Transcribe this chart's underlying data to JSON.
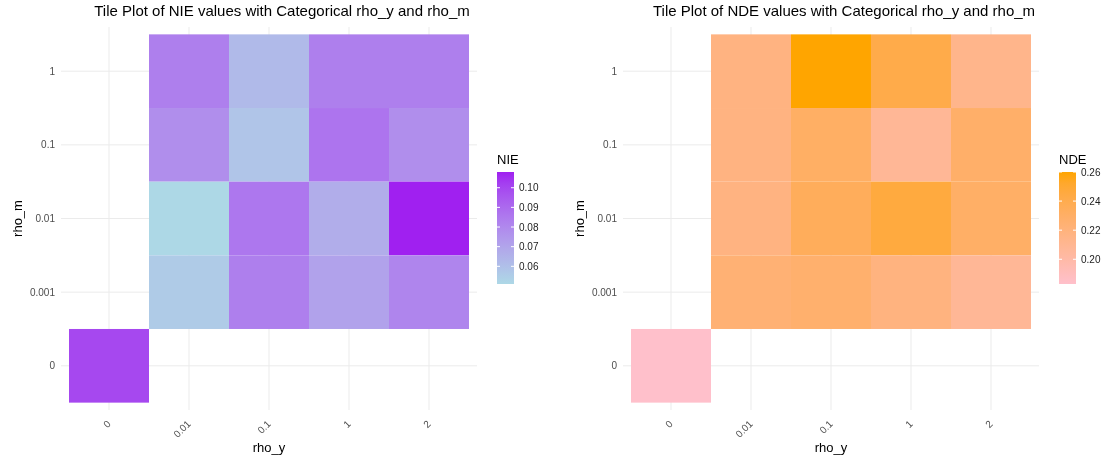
{
  "chart_data": [
    {
      "type": "heatmap",
      "title": "Tile Plot of NIE values with Categorical rho_y and rho_m",
      "xlabel": "rho_y",
      "ylabel": "rho_m",
      "clabel": "NIE",
      "categories": [
        "0",
        "0.01",
        "0.1",
        "1",
        "2"
      ],
      "y_categories": [
        "1",
        "0.1",
        "0.01",
        "0.001",
        "0"
      ],
      "cells": [
        [
          null,
          0.083,
          0.062,
          0.083,
          0.083
        ],
        [
          null,
          0.078,
          0.058,
          0.087,
          0.078
        ],
        [
          null,
          0.051,
          0.086,
          0.067,
          0.108
        ],
        [
          null,
          0.056,
          0.083,
          0.071,
          0.081
        ],
        [
          0.1,
          null,
          null,
          null,
          null
        ]
      ],
      "clim": [
        0.051,
        0.108
      ],
      "cticks": [
        0.06,
        0.07,
        0.08,
        0.09,
        {
          "value": 0.1,
          "label": "0.10"
        }
      ],
      "colors": [
        "#add8e6",
        "#a020f0"
      ],
      "grid": true
    },
    {
      "type": "heatmap",
      "title": "Tile Plot of NDE values with Categorical rho_y and rho_m",
      "xlabel": "rho_y",
      "ylabel": "rho_m",
      "clabel": "NDE",
      "categories": [
        "0",
        "0.01",
        "0.1",
        "1",
        "2"
      ],
      "y_categories": [
        "1",
        "0.1",
        "0.01",
        "0.001",
        "0"
      ],
      "cells": [
        [
          null,
          0.218,
          0.26,
          0.242,
          0.213
        ],
        [
          null,
          0.218,
          0.231,
          0.208,
          0.229
        ],
        [
          null,
          0.218,
          0.235,
          0.246,
          0.23
        ],
        [
          null,
          0.224,
          0.227,
          0.219,
          0.208
        ],
        [
          0.183,
          null,
          null,
          null,
          null
        ]
      ],
      "clim": [
        0.183,
        0.26
      ],
      "cticks": [
        {
          "value": 0.2,
          "label": "0.20"
        },
        0.22,
        0.24,
        0.26
      ],
      "colors": [
        "#ffc0cb",
        "#ffa500"
      ],
      "grid": true
    }
  ]
}
